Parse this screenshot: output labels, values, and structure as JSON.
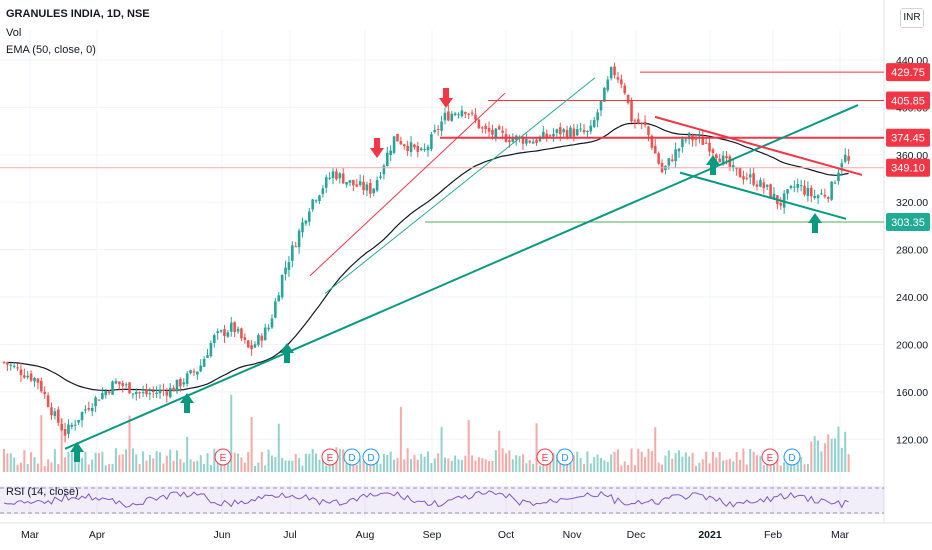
{
  "header": {
    "title": "GRANULES INDIA, 1D, NSE",
    "vol_label": "Vol",
    "ema_label": "EMA (50, close, 0)",
    "rsi_label": "RSI (14, close)",
    "currency": "INR"
  },
  "chart_data": {
    "type": "candlestick",
    "x_axis_labels": [
      "Mar",
      "Apr",
      "Jun",
      "Jul",
      "Aug",
      "Sep",
      "Oct",
      "Nov",
      "Dec",
      "2021",
      "Feb",
      "Mar"
    ],
    "y_axis_ticks": [
      120,
      160,
      200,
      240,
      280,
      320,
      360,
      400,
      440
    ],
    "ylim": [
      90,
      445
    ],
    "price_labels": [
      {
        "text": "429.75",
        "value": 429.75,
        "color": "#f23645"
      },
      {
        "text": "405.85",
        "value": 405.85,
        "color": "#f23645"
      },
      {
        "text": "374.45",
        "value": 374.45,
        "color": "#f23645"
      },
      {
        "text": "349.10",
        "value": 349.1,
        "color": "#f23645"
      },
      {
        "text": "303.35",
        "value": 303.35,
        "color": "#22ab94"
      }
    ],
    "horizontal_lines": [
      {
        "value": 429.75,
        "color": "#f23645"
      },
      {
        "value": 405.85,
        "color": "#f23645"
      },
      {
        "value": 374.45,
        "color": "#f23645"
      },
      {
        "value": 349.1,
        "color": "#f7a8ae"
      },
      {
        "value": 303.35,
        "color": "#4caf50"
      }
    ],
    "events": [
      {
        "type": "E"
      },
      {
        "type": "E"
      },
      {
        "type": "D"
      },
      {
        "type": "D"
      },
      {
        "type": "E"
      },
      {
        "type": "D"
      },
      {
        "type": "E"
      },
      {
        "type": "D"
      }
    ],
    "up_arrow_color": "#089981",
    "down_arrow_color": "#f23645",
    "candle_up_color": "#26a69a",
    "candle_down_color": "#ef5350"
  }
}
